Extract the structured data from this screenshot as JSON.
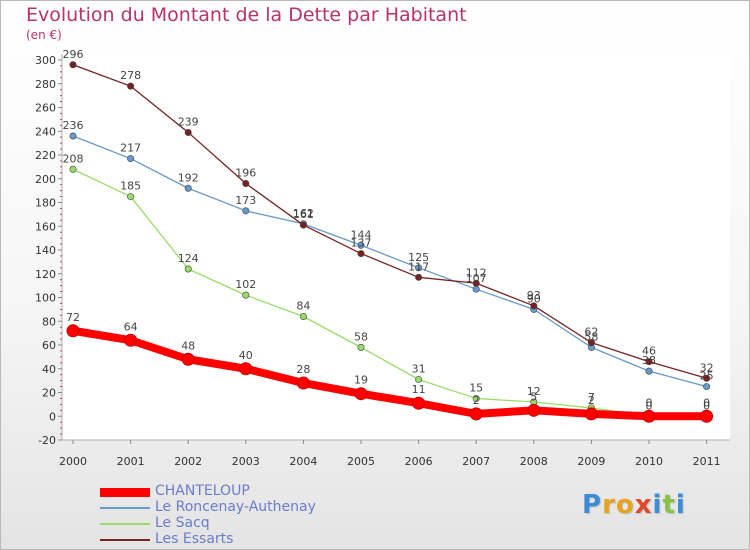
{
  "title": "Evolution du Montant de la Dette par Habitant",
  "unit_label": "(en €)",
  "logo": {
    "letters": [
      {
        "char": "P",
        "color": "#3b8bd6"
      },
      {
        "char": "r",
        "color": "#e8a21c"
      },
      {
        "char": "o",
        "color": "#e8a21c"
      },
      {
        "char": "x",
        "color": "#e04a2a"
      },
      {
        "char": "i",
        "color": "#3b8bd6"
      },
      {
        "char": "t",
        "color": "#89c04a"
      },
      {
        "char": "i",
        "color": "#3b8bd6"
      }
    ]
  },
  "chart_data": {
    "type": "line",
    "title": "Evolution du Montant de la Dette par Habitant",
    "ylabel": "(en €)",
    "x": [
      "2000",
      "2001",
      "2002",
      "2003",
      "2004",
      "2005",
      "2006",
      "2007",
      "2008",
      "2009",
      "2010",
      "2011"
    ],
    "ylim": [
      -20,
      300
    ],
    "yticks": [
      -20,
      0,
      20,
      40,
      60,
      80,
      100,
      120,
      140,
      160,
      180,
      200,
      220,
      240,
      260,
      280,
      300
    ],
    "grid": false,
    "legend_position": "bottom-left",
    "series": [
      {
        "name": "CHANTELOUP",
        "color": "#ff0000",
        "emphasis": true,
        "values": [
          72,
          64,
          48,
          40,
          28,
          19,
          11,
          2,
          5,
          2,
          0,
          0
        ],
        "labels": [
          "72",
          "64",
          "48",
          "40",
          "28",
          "19",
          "11",
          "2",
          "5",
          "2",
          "0",
          "0"
        ]
      },
      {
        "name": "Le Roncenay-Authenay",
        "color": "#6699cc",
        "values": [
          236,
          217,
          192,
          173,
          162,
          144,
          125,
          107,
          90,
          58,
          38,
          25
        ],
        "labels": [
          "236",
          "217",
          "192",
          "173",
          "162",
          "144",
          "125",
          "107",
          "90",
          "58",
          "38",
          "25"
        ]
      },
      {
        "name": "Le Sacq",
        "color": "#99dd66",
        "values": [
          208,
          185,
          124,
          102,
          84,
          58,
          31,
          15,
          12,
          7,
          0,
          0
        ],
        "labels": [
          "208",
          "185",
          "124",
          "102",
          "84",
          "58",
          "31",
          "15",
          "12",
          "7",
          "0",
          "0"
        ]
      },
      {
        "name": "Les Essarts",
        "color": "#772222",
        "values": [
          296,
          278,
          239,
          196,
          161,
          137,
          117,
          112,
          93,
          62,
          46,
          32
        ],
        "labels": [
          "296",
          "278",
          "239",
          "196",
          "161",
          "137",
          "117",
          "112",
          "93",
          "62",
          "46",
          "32"
        ]
      }
    ]
  }
}
